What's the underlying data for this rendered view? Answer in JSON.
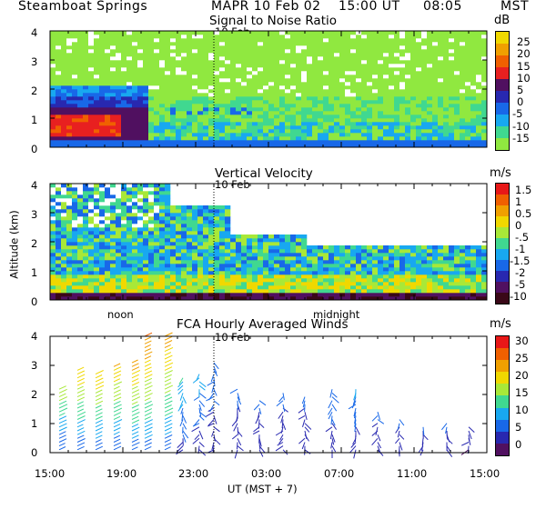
{
  "header": {
    "site": "Steamboat Springs",
    "instrument_date": "MAPR 10 Feb 02",
    "ut_time": "15:00 UT",
    "mst_time": "08:05",
    "tz": "MST"
  },
  "date_marker": "10 Feb",
  "ylabel": "Altitude (km)",
  "y_ticks": [
    "0",
    "1",
    "2",
    "3",
    "4"
  ],
  "local_labels": {
    "noon": "noon",
    "midnight": "midnight"
  },
  "x_ticks": [
    "15:00",
    "19:00",
    "23:00",
    "03:00",
    "07:00",
    "11:00",
    "15:00"
  ],
  "xlabel": "UT  (MST + 7)",
  "chart_data": [
    {
      "type": "heatmap",
      "title": "Signal to Noise Ratio",
      "units": "dB",
      "xlabel": "UT (MST + 7)",
      "ylabel": "Altitude (km)",
      "xlim_hours_ut": [
        15,
        39
      ],
      "ylim_km": [
        0,
        4
      ],
      "colorbar_labels": [
        "25",
        "20",
        "15",
        "10",
        "5",
        "0",
        "-5",
        "-10",
        "-15"
      ],
      "colors": [
        "#f0d800",
        "#f0a000",
        "#f06000",
        "#e82020",
        "#501060",
        "#2828b0",
        "#1868e8",
        "#18a8f0",
        "#40d890",
        "#90e840"
      ],
      "features": "strong echo (10 to 20 dB) below 1.5 km from 15:00 to 20:30 UT, weak returns elsewhere"
    },
    {
      "type": "heatmap",
      "title": "Vertical Velocity",
      "units": "m/s",
      "xlabel": "UT (MST + 7)",
      "ylabel": "Altitude (km)",
      "xlim_hours_ut": [
        15,
        39
      ],
      "ylim_km": [
        0,
        4
      ],
      "colorbar_labels": [
        "1.5",
        "1",
        "0.5",
        "0",
        "-.5",
        "-1",
        "-1.5",
        "-2",
        "-5",
        "-10"
      ],
      "colors": [
        "#e81818",
        "#f06000",
        "#f0a000",
        "#f0d800",
        "#a8e838",
        "#40d890",
        "#18a8f0",
        "#1868e8",
        "#2828b0",
        "#501060",
        "#3a0818"
      ],
      "features": "mostly -1 to 0 m/s, near-zero yellow band below 1 km, patches to 4 km before noon"
    },
    {
      "type": "scatter",
      "subtype": "wind barbs",
      "title": "FCA Hourly Averaged Winds",
      "units": "m/s",
      "xlabel": "UT (MST + 7)",
      "ylabel": "Altitude (km)",
      "xlim_hours_ut": [
        15,
        39
      ],
      "ylim_km": [
        0,
        4
      ],
      "colorbar_labels": [
        "30",
        "25",
        "20",
        "15",
        "10",
        "5",
        "0"
      ],
      "colors": [
        "#e81818",
        "#f06000",
        "#f0a000",
        "#f0d800",
        "#a8e838",
        "#40d890",
        "#18a8f0",
        "#1868e8",
        "#2828b0",
        "#501060"
      ],
      "profiles": [
        {
          "hour_ut": 15.5,
          "top_km": 2.2,
          "max_speed": 18
        },
        {
          "hour_ut": 16.5,
          "top_km": 2.9,
          "max_speed": 22
        },
        {
          "hour_ut": 17.5,
          "top_km": 2.8,
          "max_speed": 22
        },
        {
          "hour_ut": 18.5,
          "top_km": 3.0,
          "max_speed": 22
        },
        {
          "hour_ut": 19.5,
          "top_km": 3.2,
          "max_speed": 24
        },
        {
          "hour_ut": 20.2,
          "top_km": 4.1,
          "max_speed": 26
        },
        {
          "hour_ut": 21.3,
          "top_km": 4.0,
          "max_speed": 24
        },
        {
          "hour_ut": 22.3,
          "top_km": 2.6,
          "max_speed": 12
        },
        {
          "hour_ut": 23.2,
          "top_km": 2.8,
          "max_speed": 10
        },
        {
          "hour_ut": 24.0,
          "top_km": 3.1,
          "max_speed": 8
        },
        {
          "hour_ut": 25.3,
          "top_km": 2.2,
          "max_speed": 6
        },
        {
          "hour_ut": 26.5,
          "top_km": 1.9,
          "max_speed": 6
        },
        {
          "hour_ut": 27.8,
          "top_km": 2.1,
          "max_speed": 6
        },
        {
          "hour_ut": 29.0,
          "top_km": 2.0,
          "max_speed": 6
        },
        {
          "hour_ut": 30.5,
          "top_km": 2.2,
          "max_speed": 8
        },
        {
          "hour_ut": 31.8,
          "top_km": 2.2,
          "max_speed": 9
        },
        {
          "hour_ut": 33.0,
          "top_km": 1.4,
          "max_speed": 6
        },
        {
          "hour_ut": 34.2,
          "top_km": 1.2,
          "max_speed": 6
        },
        {
          "hour_ut": 35.5,
          "top_km": 1.0,
          "max_speed": 6
        },
        {
          "hour_ut": 36.8,
          "top_km": 1.1,
          "max_speed": 6
        },
        {
          "hour_ut": 38.0,
          "top_km": 0.9,
          "max_speed": 5
        }
      ]
    }
  ]
}
